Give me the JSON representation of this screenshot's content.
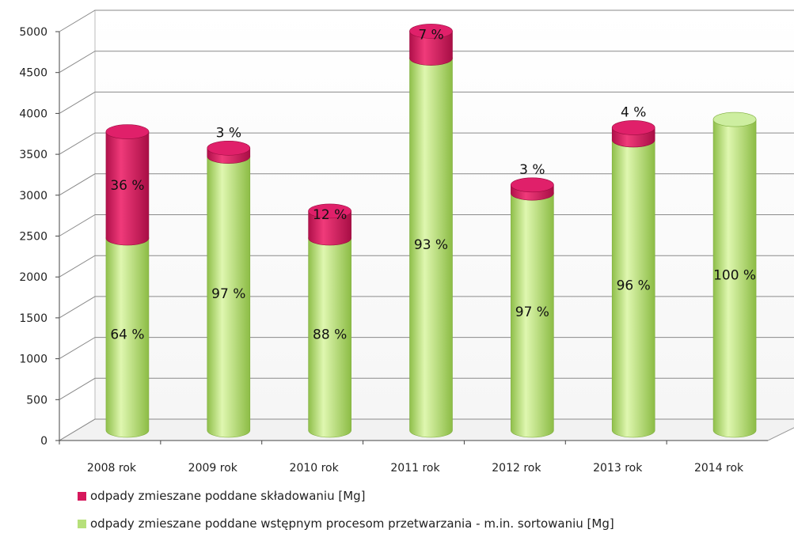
{
  "chart_data": {
    "type": "bar",
    "stacked": true,
    "style": "3d-cylinder",
    "categories": [
      "2008 rok",
      "2009 rok",
      "2010 rok",
      "2011 rok",
      "2012 rok",
      "2013 rok",
      "2014 rok"
    ],
    "series": [
      {
        "name": "odpady zmieszane poddane wstępnym procesom przetwarzania - m.in. sortowaniu [Mg]",
        "color": "#b6e07a",
        "values": [
          2350,
          3350,
          2350,
          4550,
          2900,
          3550,
          3800
        ],
        "labels": [
          "64 %",
          "97 %",
          "88 %",
          "93 %",
          "97 %",
          "96 %",
          "100 %"
        ]
      },
      {
        "name": "odpady zmieszane poddane składowaniu [Mg]",
        "color": "#d6185c",
        "values": [
          1300,
          100,
          330,
          330,
          100,
          150,
          0
        ],
        "labels": [
          "36 %",
          "3 %",
          "12 %",
          "7 %",
          "3 %",
          "4 %",
          ""
        ]
      }
    ],
    "y_ticks": [
      "0",
      "500",
      "1000",
      "1500",
      "2000",
      "2500",
      "3000",
      "3500",
      "4000",
      "4500",
      "5000"
    ],
    "ylim": [
      0,
      5000
    ],
    "grid": true,
    "legend_position": "bottom"
  },
  "legend": {
    "item1": "odpady zmieszane poddane składowaniu [Mg]",
    "item2": "odpady zmieszane poddane wstępnym procesom przetwarzania - m.in. sortowaniu [Mg]"
  }
}
